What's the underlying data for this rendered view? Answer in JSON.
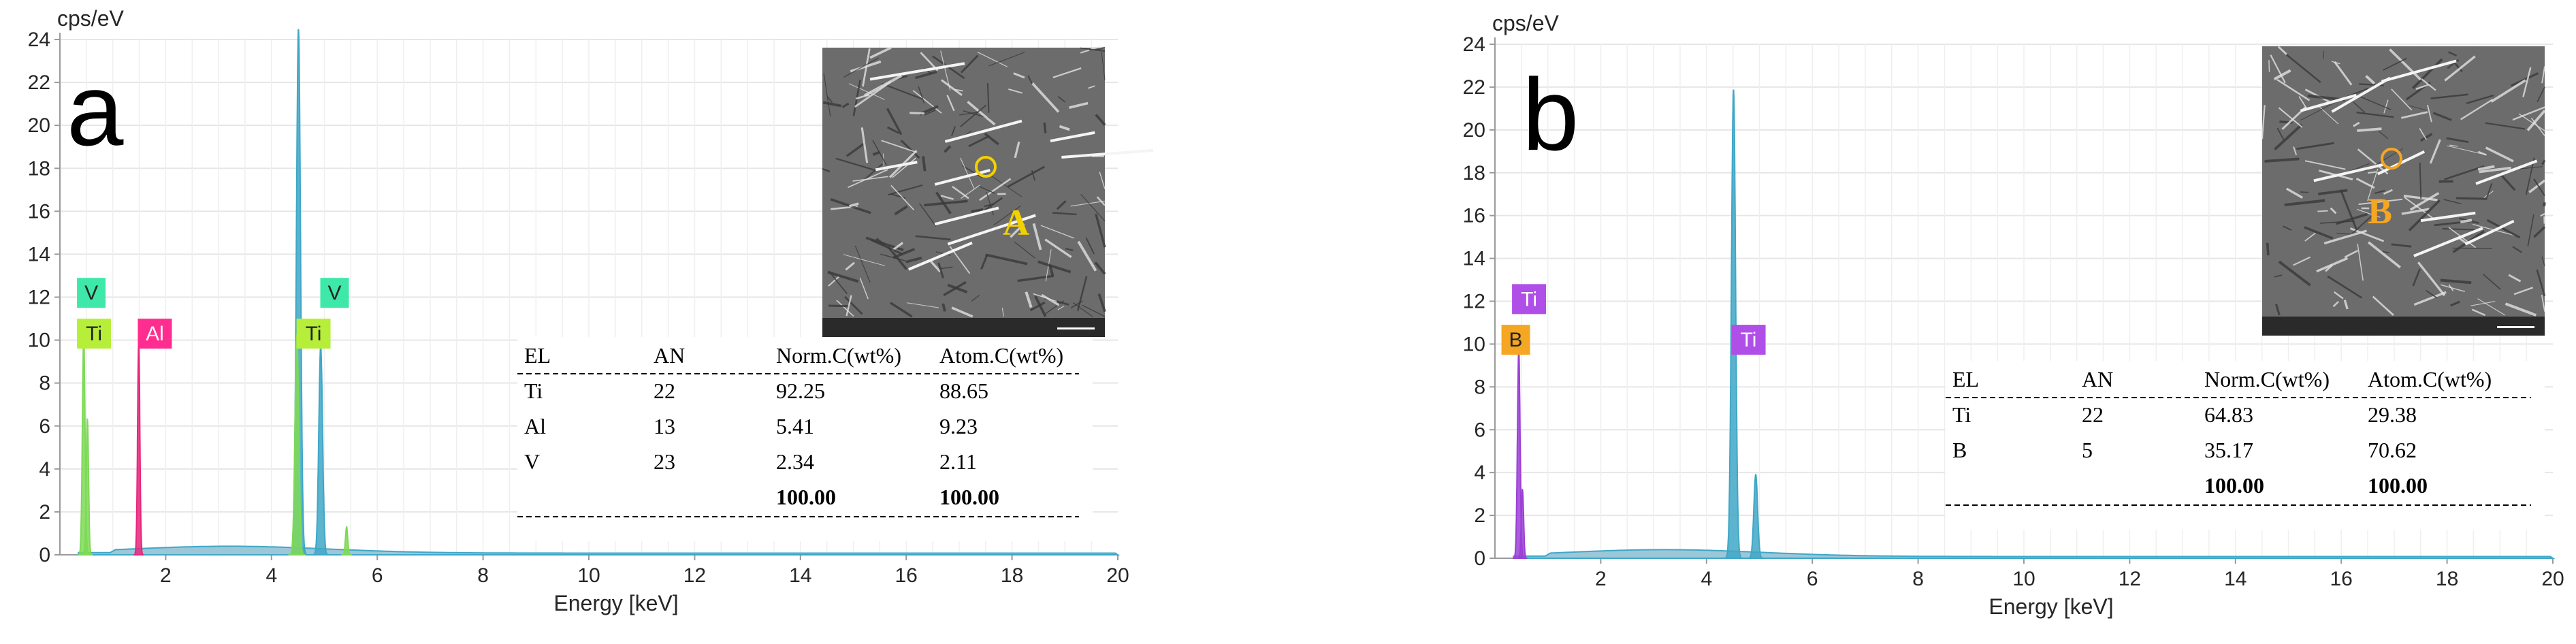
{
  "chart_data": [
    {
      "type": "line",
      "panel_label": "a",
      "y_unit": "cps/eV",
      "xlabel": "Energy [keV]",
      "xlim": [
        0,
        20
      ],
      "ylim": [
        0,
        24
      ],
      "x_ticks": [
        "2",
        "4",
        "6",
        "8",
        "10",
        "12",
        "14",
        "16",
        "18",
        "20"
      ],
      "y_ticks": [
        "0",
        "2",
        "4",
        "6",
        "8",
        "10",
        "12",
        "14",
        "16",
        "18",
        "20",
        "22",
        "24"
      ],
      "grid": true,
      "series": [
        {
          "color": "#3fa7c7",
          "peaks": [
            {
              "x": 4.51,
              "y": 24.5,
              "w": 0.055
            },
            {
              "x": 4.93,
              "y": 9.7,
              "w": 0.05
            }
          ]
        },
        {
          "color": "#7ed957",
          "peaks": [
            {
              "x": 0.45,
              "y": 10.1,
              "w": 0.035
            },
            {
              "x": 0.52,
              "y": 6.3,
              "w": 0.03
            },
            {
              "x": 4.48,
              "y": 10.2,
              "w": 0.05
            },
            {
              "x": 5.42,
              "y": 1.3,
              "w": 0.03
            }
          ]
        },
        {
          "color": "#e8267c",
          "peaks": [
            {
              "x": 1.49,
              "y": 9.9,
              "w": 0.03
            }
          ]
        }
      ],
      "peak_tags": [
        {
          "label": "V",
          "x": 0.4,
          "y": 12.2,
          "color": "#3ee8a8"
        },
        {
          "label": "Ti",
          "x": 0.4,
          "y": 10.3,
          "color": "#b7ee3a"
        },
        {
          "label": "Al",
          "x": 1.55,
          "y": 10.3,
          "color": "#ff2d8f"
        },
        {
          "label": "Ti",
          "x": 4.55,
          "y": 10.3,
          "color": "#b7ee3a"
        },
        {
          "label": "V",
          "x": 5.0,
          "y": 12.2,
          "color": "#3ee8a8"
        }
      ],
      "inset_label": "A",
      "inset_label_color": "#f3d000",
      "table": {
        "headers": [
          "EL",
          "AN",
          "Norm.C(wt%)",
          "Atom.C(wt%)"
        ],
        "rows": [
          [
            "Ti",
            "22",
            "92.25",
            "88.65"
          ],
          [
            "Al",
            "13",
            "5.41",
            "9.23"
          ],
          [
            "V",
            "23",
            "2.34",
            "2.11"
          ]
        ],
        "total": [
          "",
          "",
          "100.00",
          "100.00"
        ]
      }
    },
    {
      "type": "line",
      "panel_label": "b",
      "y_unit": "cps/eV",
      "xlabel": "Energy [keV]",
      "xlim": [
        0,
        20
      ],
      "ylim": [
        0,
        24
      ],
      "x_ticks": [
        "2",
        "4",
        "6",
        "8",
        "10",
        "12",
        "14",
        "16",
        "18",
        "20"
      ],
      "y_ticks": [
        "0",
        "2",
        "4",
        "6",
        "8",
        "10",
        "12",
        "14",
        "16",
        "18",
        "20",
        "22",
        "24"
      ],
      "grid": true,
      "series": [
        {
          "color": "#3fa7c7",
          "peaks": [
            {
              "x": 4.51,
              "y": 21.9,
              "w": 0.055
            },
            {
              "x": 4.93,
              "y": 3.9,
              "w": 0.05
            }
          ]
        },
        {
          "color": "#9b3fd6",
          "peaks": [
            {
              "x": 0.45,
              "y": 9.7,
              "w": 0.035
            },
            {
              "x": 0.52,
              "y": 3.2,
              "w": 0.03
            }
          ]
        }
      ],
      "peak_tags": [
        {
          "label": "Ti",
          "x": 0.4,
          "y": 12.1,
          "color": "#b04ee8"
        },
        {
          "label": "B",
          "x": 0.2,
          "y": 10.2,
          "color": "#f5a623"
        },
        {
          "label": "Ti",
          "x": 4.55,
          "y": 10.2,
          "color": "#b04ee8"
        }
      ],
      "inset_label": "B",
      "inset_label_color": "#f5a623",
      "table": {
        "headers": [
          "EL",
          "AN",
          "Norm.C(wt%)",
          "Atom.C(wt%)"
        ],
        "rows": [
          [
            "Ti",
            "22",
            "64.83",
            "29.38"
          ],
          [
            "B",
            "5",
            "35.17",
            "70.62"
          ]
        ],
        "total": [
          "",
          "",
          "100.00",
          "100.00"
        ]
      }
    }
  ]
}
